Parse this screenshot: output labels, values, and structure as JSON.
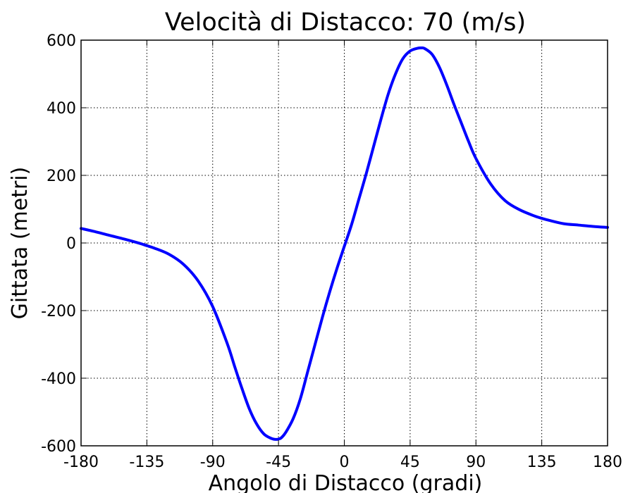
{
  "chart_data": {
    "type": "line",
    "title": "Velocità di Distacco: 70 (m/s)",
    "xlabel": "Angolo di Distacco (gradi)",
    "ylabel": "Gittata (metri)",
    "xlim": [
      -180,
      180
    ],
    "ylim": [
      -600,
      600
    ],
    "xticks": [
      -180,
      -135,
      -90,
      -45,
      0,
      45,
      90,
      135,
      180
    ],
    "xtick_labels": [
      "-180",
      "-135",
      "-90",
      "-45",
      "0",
      "45",
      "90",
      "135",
      "180"
    ],
    "yticks": [
      -600,
      -400,
      -200,
      0,
      200,
      400,
      600
    ],
    "ytick_labels": [
      "-600",
      "-400",
      "-200",
      "0",
      "200",
      "400",
      "600"
    ],
    "grid": true,
    "series": [
      {
        "color": "#0000ff",
        "x": [
          -180,
          -170,
          -160,
          -150,
          -140,
          -135,
          -130,
          -120,
          -110,
          -100,
          -90,
          -80,
          -75,
          -70,
          -65,
          -60,
          -55,
          -50,
          -47,
          -45,
          -43,
          -40,
          -35,
          -30,
          -25,
          -20,
          -15,
          -10,
          -5,
          0,
          5,
          10,
          15,
          20,
          25,
          30,
          35,
          40,
          45,
          50,
          53,
          55,
          60,
          65,
          70,
          75,
          80,
          85,
          90,
          100,
          110,
          120,
          130,
          135,
          140,
          150,
          160,
          170,
          180
        ],
        "y": [
          43,
          33,
          22,
          11,
          -1,
          -8,
          -15,
          -33,
          -63,
          -112,
          -188,
          -298,
          -365,
          -430,
          -490,
          -535,
          -565,
          -578,
          -581,
          -580,
          -576,
          -560,
          -520,
          -460,
          -380,
          -300,
          -220,
          -145,
          -75,
          -10,
          55,
          130,
          205,
          285,
          365,
          440,
          500,
          545,
          568,
          576,
          577,
          575,
          558,
          520,
          468,
          410,
          355,
          300,
          250,
          175,
          125,
          98,
          80,
          73,
          67,
          57,
          53,
          49,
          46
        ]
      }
    ]
  }
}
